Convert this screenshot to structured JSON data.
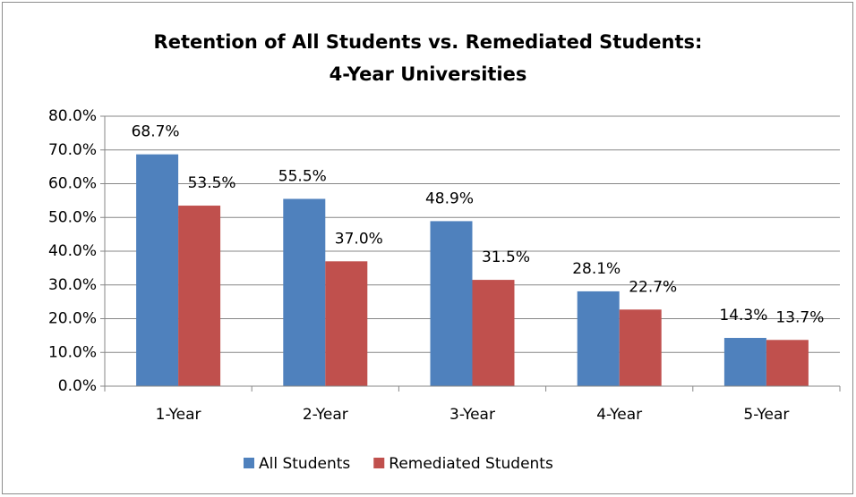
{
  "chart_data": {
    "type": "bar",
    "title": [
      "Retention of All Students vs. Remediated Students:",
      "4-Year Universities"
    ],
    "categories": [
      "1-Year",
      "2-Year",
      "3-Year",
      "4-Year",
      "5-Year"
    ],
    "series": [
      {
        "name": "All Students",
        "color": "#4f81bd",
        "values": [
          68.7,
          55.5,
          48.9,
          28.1,
          14.3
        ],
        "value_labels": [
          "68.7%",
          "55.5%",
          "48.9%",
          "28.1%",
          "14.3%"
        ]
      },
      {
        "name": "Remediated Students",
        "color": "#c0504d",
        "values": [
          53.5,
          37.0,
          31.5,
          22.7,
          13.7
        ],
        "value_labels": [
          "53.5%",
          "37.0%",
          "31.5%",
          "22.7%",
          "13.7%"
        ]
      }
    ],
    "ylim": [
      0,
      80
    ],
    "yticks": [
      {
        "value": 0,
        "label": "0.0%"
      },
      {
        "value": 10,
        "label": "10.0%"
      },
      {
        "value": 20,
        "label": "20.0%"
      },
      {
        "value": 30,
        "label": "30.0%"
      },
      {
        "value": 40,
        "label": "40.0%"
      },
      {
        "value": 50,
        "label": "50.0%"
      },
      {
        "value": 60,
        "label": "60.0%"
      },
      {
        "value": 70,
        "label": "70.0%"
      },
      {
        "value": 80,
        "label": "80.0%"
      }
    ],
    "grid": true
  }
}
